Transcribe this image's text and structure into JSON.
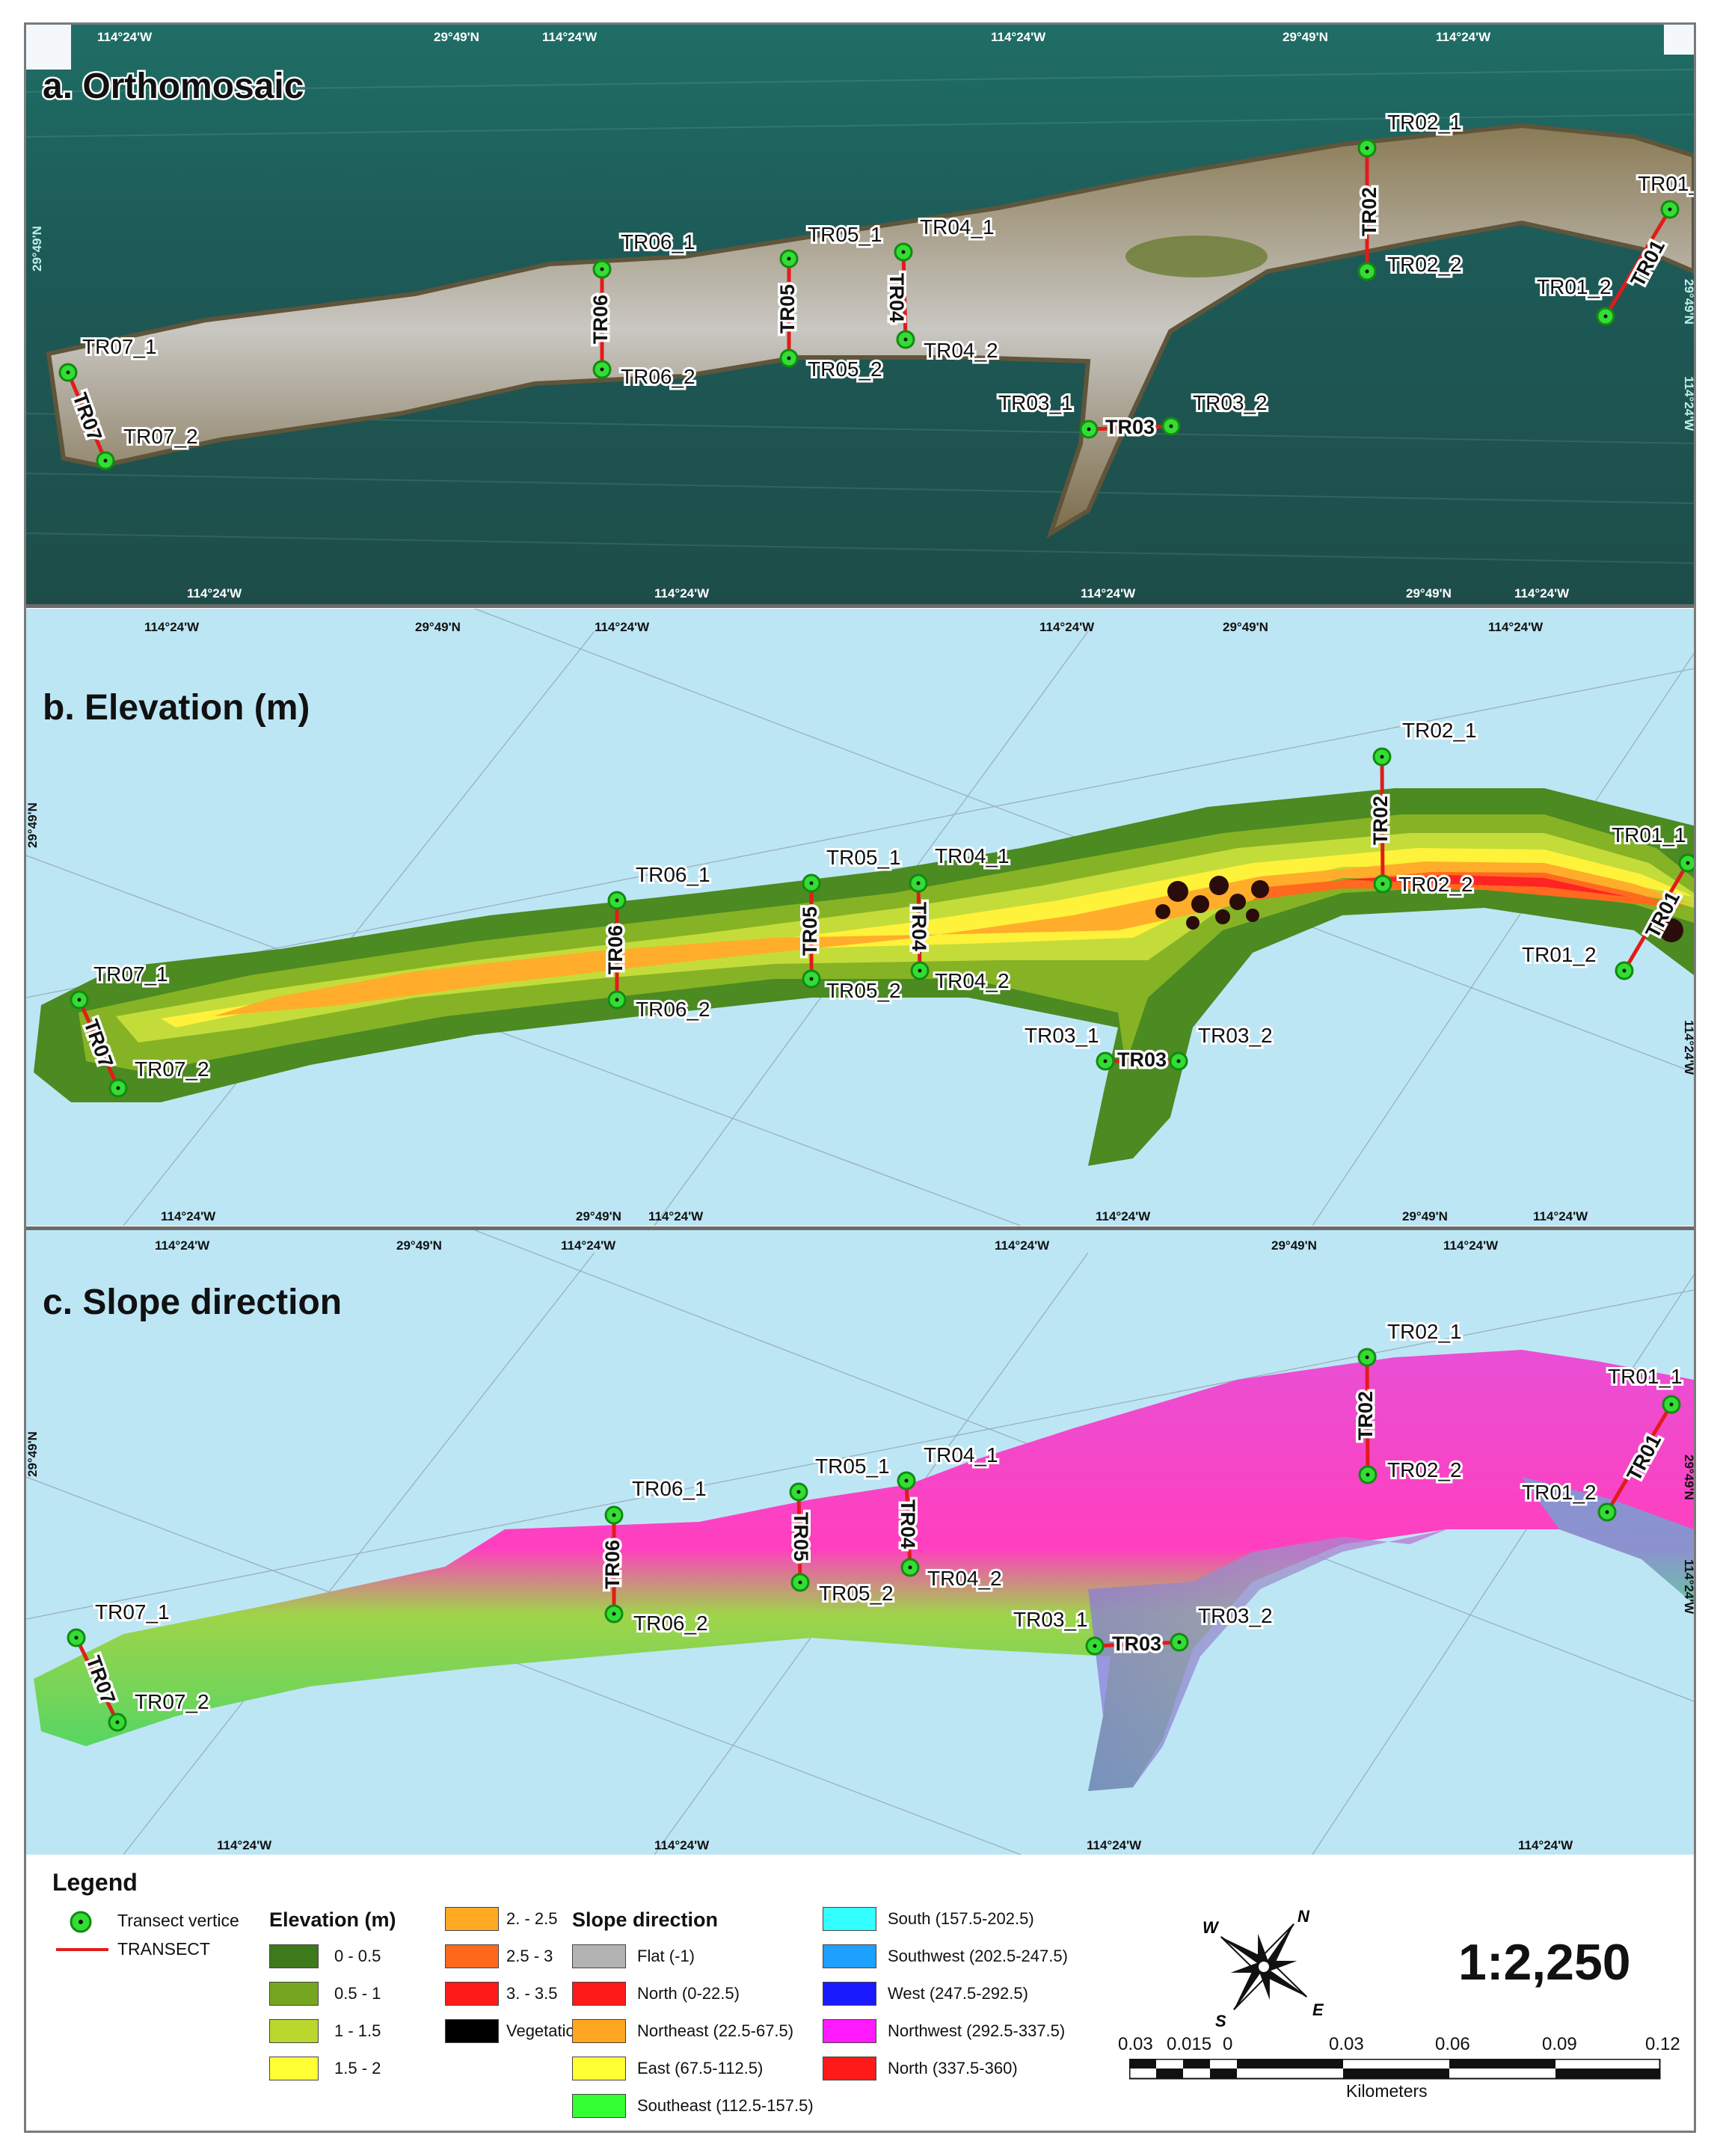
{
  "panels": [
    {
      "id": "a",
      "title": "a.  Orthomosaic"
    },
    {
      "id": "b",
      "title": "b. Elevation (m)"
    },
    {
      "id": "c",
      "title": "c. Slope direction"
    }
  ],
  "transects": [
    {
      "name": "TR01",
      "v1": "TR01_1",
      "v2": "TR01_2"
    },
    {
      "name": "TR02",
      "v1": "TR02_1",
      "v2": "TR02_2"
    },
    {
      "name": "TR03",
      "v1": "TR03_1",
      "v2": "TR03_2"
    },
    {
      "name": "TR04",
      "v1": "TR04_1",
      "v2": "TR04_2"
    },
    {
      "name": "TR05",
      "v1": "TR05_1",
      "v2": "TR05_2"
    },
    {
      "name": "TR06",
      "v1": "TR06_1",
      "v2": "TR06_2"
    },
    {
      "name": "TR07",
      "v1": "TR07_1",
      "v2": "TR07_2"
    }
  ],
  "graticule": {
    "lon": "114°24'W",
    "lat": "29°49'N"
  },
  "legend": {
    "title": "Legend",
    "vertex_label": "Transect vertice",
    "transect_label": "TRANSECT",
    "elevation_title": "Elevation (m)",
    "elevation_classes": [
      {
        "label": "0 - 0.5",
        "color": "#3d7a1c"
      },
      {
        "label": "0.5 - 1",
        "color": "#76a61f"
      },
      {
        "label": "1 - 1.5",
        "color": "#b9d72c"
      },
      {
        "label": "1.5 - 2",
        "color": "#ffff33"
      },
      {
        "label": "2. - 2.5",
        "color": "#ffaa22"
      },
      {
        "label": "2.5 - 3",
        "color": "#ff6a1a"
      },
      {
        "label": "3. - 3.5",
        "color": "#ff1a1a"
      },
      {
        "label": "Vegetation",
        "color": "#000000"
      }
    ],
    "slope_title": "Slope direction",
    "slope_classes": [
      {
        "label": "Flat (-1)",
        "color": "#b3b3b3"
      },
      {
        "label": "North (0-22.5)",
        "color": "#ff1a1a"
      },
      {
        "label": "Northeast (22.5-67.5)",
        "color": "#ffa51f"
      },
      {
        "label": "East (67.5-112.5)",
        "color": "#ffff33"
      },
      {
        "label": "Southeast (112.5-157.5)",
        "color": "#33ff33"
      },
      {
        "label": "South (157.5-202.5)",
        "color": "#33ffff"
      },
      {
        "label": "Southwest (202.5-247.5)",
        "color": "#1ea0ff"
      },
      {
        "label": "West (247.5-292.5)",
        "color": "#1a1aff"
      },
      {
        "label": "Northwest (292.5-337.5)",
        "color": "#ff1aff"
      },
      {
        "label": "North (337.5-360)",
        "color": "#ff1a1a"
      }
    ],
    "compass": {
      "n": "N",
      "e": "E",
      "s": "S",
      "w": "W"
    },
    "scale_ratio": "1:2,250",
    "scale_ticks": [
      "0.03",
      "0.015",
      "0",
      "0.03",
      "0.06",
      "0.09",
      "0.12"
    ],
    "scale_unit": "Kilometers"
  }
}
